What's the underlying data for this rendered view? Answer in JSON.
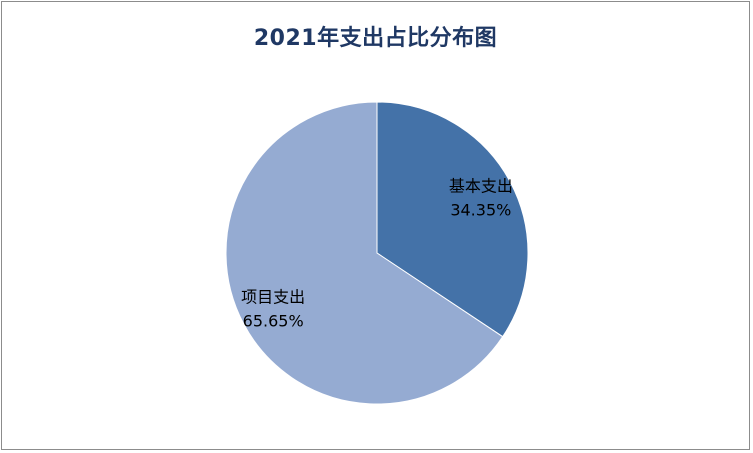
{
  "chart_data": {
    "type": "pie",
    "title": "2021年支出占比分布图",
    "slices": [
      {
        "label": "基本支出",
        "value": 34.35,
        "display": "34.35%",
        "color": "#4472a8"
      },
      {
        "label": "项目支出",
        "value": 65.65,
        "display": "65.65%",
        "color": "#95abd2"
      }
    ],
    "legend": "none",
    "start": "top, clockwise"
  },
  "colors": {
    "border": "#8c8c8c",
    "title": "#1f3864",
    "slice_edge": "#ffffff"
  }
}
